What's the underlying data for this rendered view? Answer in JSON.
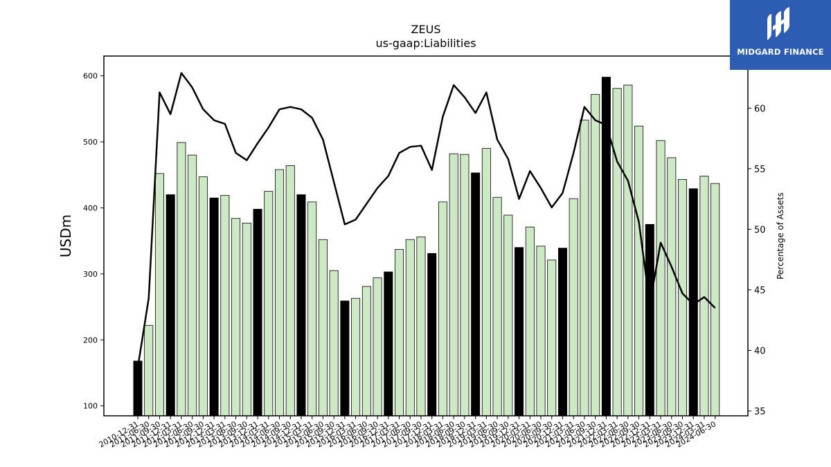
{
  "brand": {
    "name": "MIDGARD FINANCE",
    "color": "#2d5db3"
  },
  "chart_data": {
    "type": "bar",
    "title": "ZEUS",
    "subtitle": "us-gaap:Liabilities",
    "ylabel": "USDm",
    "y2label": "Percentage of Assets",
    "ylim": [
      85,
      630
    ],
    "y2lim": [
      34.6,
      64.3
    ],
    "yticks": [
      100,
      200,
      300,
      400,
      500,
      600
    ],
    "y2ticks": [
      35,
      40,
      45,
      50,
      55,
      60
    ],
    "categories": [
      "2010-12-31",
      "2011-06-30",
      "2011-09-30",
      "2011-12-31",
      "2012-03-31",
      "2012-06-30",
      "2012-09-30",
      "2012-12-31",
      "2013-03-31",
      "2013-06-30",
      "2013-09-30",
      "2013-12-31",
      "2014-03-31",
      "2014-06-30",
      "2014-09-30",
      "2014-12-31",
      "2015-03-31",
      "2015-06-30",
      "2015-09-30",
      "2015-12-31",
      "2016-03-31",
      "2016-06-30",
      "2016-09-30",
      "2016-12-31",
      "2017-03-31",
      "2017-06-30",
      "2017-09-30",
      "2017-12-31",
      "2018-03-31",
      "2018-06-30",
      "2018-09-30",
      "2018-12-31",
      "2019-03-31",
      "2019-06-30",
      "2019-09-30",
      "2019-12-31",
      "2020-03-31",
      "2020-06-30",
      "2020-09-30",
      "2020-12-31",
      "2021-03-31",
      "2021-06-30",
      "2021-09-30",
      "2021-12-31",
      "2022-03-31",
      "2022-06-30",
      "2022-09-30",
      "2022-12-31",
      "2023-03-31",
      "2023-06-30",
      "2023-09-30",
      "2023-12-31",
      "2024-03-31",
      "2024-06-30"
    ],
    "series": [
      {
        "kind": "bar",
        "values": [
          168,
          222,
          452,
          420,
          499,
          480,
          447,
          415,
          419,
          384,
          377,
          398,
          425,
          458,
          464,
          420,
          409,
          352,
          305,
          259,
          263,
          281,
          294,
          303,
          337,
          352,
          356,
          331,
          409,
          482,
          481,
          453,
          490,
          416,
          389,
          340,
          371,
          342,
          321,
          339,
          414,
          533,
          572,
          598,
          581,
          586,
          524,
          375,
          502,
          476,
          443,
          429,
          448,
          437
        ],
        "highlight": [
          true,
          false,
          false,
          true,
          false,
          false,
          false,
          true,
          false,
          false,
          false,
          true,
          false,
          false,
          false,
          true,
          false,
          false,
          false,
          true,
          false,
          false,
          false,
          true,
          false,
          false,
          false,
          true,
          false,
          false,
          false,
          true,
          false,
          false,
          false,
          true,
          false,
          false,
          false,
          true,
          false,
          false,
          false,
          true,
          false,
          false,
          false,
          true,
          false,
          false,
          false,
          true,
          false,
          false
        ],
        "color": "#cde8c4",
        "highlight_color": "#000000"
      },
      {
        "kind": "line",
        "axis": "right",
        "values": [
          38.6,
          44.3,
          61.3,
          59.5,
          62.9,
          61.7,
          59.9,
          59.0,
          58.7,
          56.3,
          55.7,
          57.1,
          58.4,
          59.9,
          60.1,
          59.9,
          59.2,
          57.4,
          53.9,
          50.4,
          50.8,
          52.1,
          53.4,
          54.4,
          56.3,
          56.8,
          56.9,
          54.9,
          59.3,
          61.9,
          60.9,
          59.6,
          61.3,
          57.4,
          55.8,
          52.5,
          54.8,
          53.4,
          51.8,
          53.0,
          56.3,
          60.1,
          59.0,
          58.6,
          55.6,
          54.0,
          50.6,
          43.8,
          48.9,
          46.9,
          44.7,
          43.8,
          44.4,
          43.5
        ]
      }
    ]
  }
}
